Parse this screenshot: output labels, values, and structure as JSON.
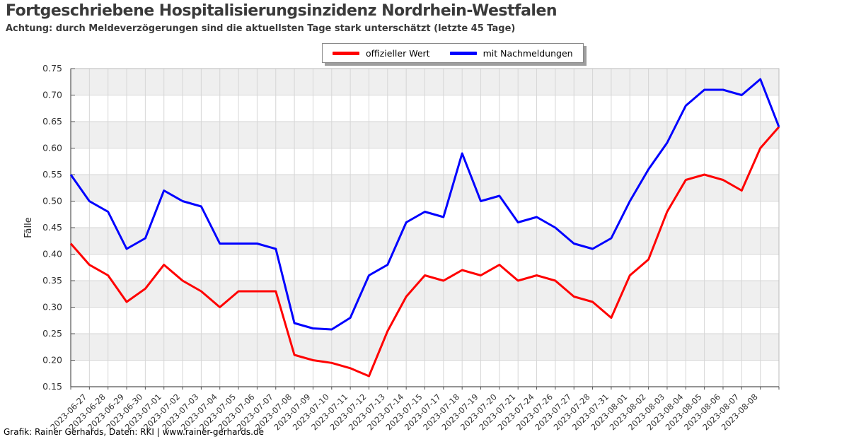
{
  "header": {
    "title": "Fortgeschriebene Hospitalisierungsinzidenz Nordrhein-Westfalen",
    "subtitle": "Achtung: durch Meldeverzögerungen sind die aktuellsten Tage stark unterschätzt (letzte 45 Tage)"
  },
  "legend": {
    "items": [
      {
        "label": "offizieller Wert",
        "color": "#ff0000"
      },
      {
        "label": "mit Nachmeldungen",
        "color": "#0000ff"
      }
    ]
  },
  "footer": {
    "credit": "Grafik: Rainer Gerhards, Daten: RKI | www.rainer-gerhards.de"
  },
  "colors": {
    "band_gray": "#efefef",
    "band_white": "#ffffff",
    "grid": "#d6d6d6",
    "box_border": "#bbbbbb",
    "axis": "#555555",
    "tick_text": "#333333"
  },
  "chart_data": {
    "type": "line",
    "title": "Fortgeschriebene Hospitalisierungsinzidenz Nordrhein-Westfalen",
    "subtitle": "Achtung: durch Meldeverzögerungen sind die aktuellsten Tage stark unterschätzt (letzte 45 Tage)",
    "xlabel": "",
    "ylabel": "Fälle",
    "ylim": [
      0.15,
      0.75
    ],
    "ytick_step": 0.05,
    "grid": true,
    "legend_position": "top-center",
    "categories": [
      "",
      "2023-06-27",
      "2023-06-28",
      "2023-06-29",
      "2023-06-30",
      "2023-07-01",
      "2023-07-02",
      "2023-07-03",
      "2023-07-04",
      "2023-07-05",
      "2023-07-06",
      "2023-07-07",
      "2023-07-08",
      "2023-07-09",
      "2023-07-10",
      "2023-07-11",
      "2023-07-12",
      "2023-07-13",
      "2023-07-14",
      "2023-07-15",
      "2023-07-17",
      "2023-07-18",
      "2023-07-19",
      "2023-07-20",
      "2023-07-21",
      "2023-07-24",
      "2023-07-26",
      "2023-07-27",
      "2023-07-28",
      "2023-07-31",
      "2023-08-01",
      "2023-08-02",
      "2023-08-03",
      "2023-08-04",
      "2023-08-05",
      "2023-08-06",
      "2023-08-07",
      "2023-08-08",
      ""
    ],
    "series": [
      {
        "name": "offizieller Wert",
        "color": "#ff0000",
        "values": [
          0.42,
          0.38,
          0.36,
          0.31,
          0.335,
          0.38,
          0.35,
          0.33,
          0.3,
          0.33,
          0.33,
          0.33,
          0.21,
          0.2,
          0.195,
          0.185,
          0.17,
          0.255,
          0.32,
          0.36,
          0.35,
          0.37,
          0.36,
          0.38,
          0.35,
          0.36,
          0.35,
          0.32,
          0.31,
          0.28,
          0.36,
          0.39,
          0.48,
          0.54,
          0.55,
          0.54,
          0.52,
          0.6,
          0.64
        ]
      },
      {
        "name": "mit Nachmeldungen",
        "color": "#0000ff",
        "values": [
          0.55,
          0.5,
          0.48,
          0.41,
          0.43,
          0.52,
          0.5,
          0.49,
          0.42,
          0.42,
          0.42,
          0.41,
          0.27,
          0.26,
          0.258,
          0.28,
          0.36,
          0.38,
          0.46,
          0.48,
          0.47,
          0.59,
          0.5,
          0.51,
          0.46,
          0.47,
          0.45,
          0.42,
          0.41,
          0.43,
          0.5,
          0.56,
          0.61,
          0.68,
          0.71,
          0.71,
          0.7,
          0.73,
          0.64
        ]
      }
    ]
  }
}
